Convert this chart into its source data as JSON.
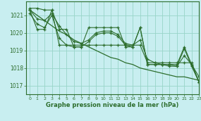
{
  "title": "Graphe pression niveau de la mer (hPa)",
  "background_color": "#c8eef0",
  "grid_color": "#98d4c8",
  "line_color": "#2d6e2d",
  "xlim": [
    -0.5,
    23
  ],
  "ylim": [
    1016.5,
    1021.8
  ],
  "yticks": [
    1017,
    1018,
    1019,
    1020,
    1021
  ],
  "xticks": [
    0,
    1,
    2,
    3,
    4,
    5,
    6,
    7,
    8,
    9,
    10,
    11,
    12,
    13,
    14,
    15,
    16,
    17,
    18,
    19,
    20,
    21,
    22,
    23
  ],
  "series": [
    [
      1021.3,
      1020.2,
      1020.2,
      1021.3,
      1020.2,
      1020.2,
      1019.2,
      1019.2,
      1020.3,
      1020.3,
      1020.3,
      1020.3,
      1020.3,
      1019.2,
      1019.2,
      1020.3,
      1018.2,
      1018.2,
      1018.2,
      1018.2,
      1018.2,
      1019.2,
      1018.2,
      1017.2
    ],
    [
      1021.4,
      1021.4,
      1021.3,
      1021.3,
      1019.3,
      1019.3,
      1019.3,
      1019.3,
      1019.3,
      1019.3,
      1019.3,
      1019.3,
      1019.3,
      1019.3,
      1019.3,
      1019.3,
      1018.3,
      1018.3,
      1018.3,
      1018.3,
      1018.3,
      1018.3,
      1018.3,
      1017.2
    ],
    [
      1021.1,
      1020.5,
      1020.3,
      1021.0,
      1019.7,
      1019.3,
      1019.2,
      1019.2,
      1019.5,
      1019.9,
      1020.0,
      1020.0,
      1019.8,
      1019.3,
      1019.2,
      1020.3,
      1018.2,
      1018.2,
      1018.2,
      1018.1,
      1018.1,
      1019.1,
      1018.1,
      1017.2
    ],
    [
      1021.3,
      1020.8,
      1020.7,
      1021.1,
      1020.4,
      1019.9,
      1019.5,
      1019.4,
      1019.6,
      1020.0,
      1020.1,
      1020.1,
      1019.9,
      1019.4,
      1019.3,
      1019.6,
      1018.5,
      1018.3,
      1018.2,
      1018.2,
      1018.1,
      1018.7,
      1018.2,
      1017.5
    ]
  ],
  "series_smooth": [
    1021.3,
    1021.0,
    1020.7,
    1020.4,
    1020.1,
    1019.9,
    1019.6,
    1019.4,
    1019.2,
    1019.0,
    1018.8,
    1018.6,
    1018.5,
    1018.3,
    1018.2,
    1018.0,
    1017.9,
    1017.8,
    1017.7,
    1017.6,
    1017.5,
    1017.5,
    1017.4,
    1017.3
  ]
}
